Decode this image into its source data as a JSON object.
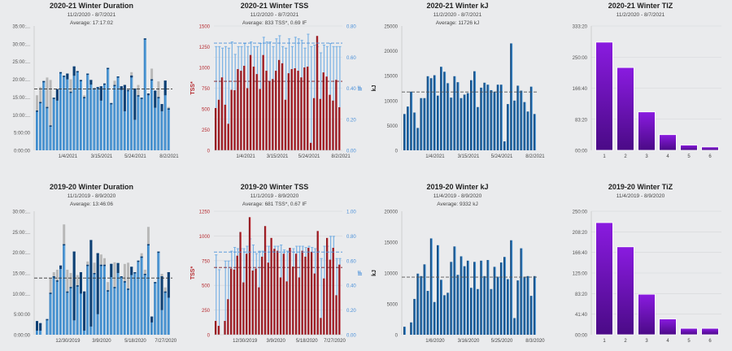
{
  "colors": {
    "background": "#eaebed",
    "duration_main": "#3a86c8",
    "duration_dark": "#0e3f72",
    "duration_light": "#7fc0ef",
    "duration_gray": "#b8b8b8",
    "kj_bar": "#1b5d9a",
    "tss_bar": "#9e1b22",
    "if_bar": "#7bb2e4",
    "tiz_bar": "#6a10b8",
    "tss_axis": "#b5282d",
    "if_axis": "#4a90d9"
  },
  "chart_data": [
    {
      "id": "dur21",
      "type": "bar",
      "title": "2020-21 Winter Duration",
      "subtitle": "11/2/2020 - 8/7/2021",
      "average_label": "Average: 17:17:02",
      "ylabel": "",
      "ylim": [
        0,
        35
      ],
      "yticks": [
        "0:00:00",
        "5:00:00",
        "10:00:...",
        "15:00:...",
        "20:00:...",
        "25:00:...",
        "30:00:...",
        "35:00:..."
      ],
      "xticks": [
        "1/4/2021",
        "3/15/2021",
        "5/24/2021",
        "8/2/2021"
      ],
      "xtick_index": [
        9,
        19,
        29,
        39
      ],
      "average": 17.28,
      "series": [
        {
          "name": "total",
          "values": [
            15.5,
            17.8,
            19.5,
            20.5,
            19.8,
            14.8,
            17.2,
            22,
            21,
            21.6,
            20,
            23.6,
            22.3,
            19.8,
            15.5,
            21.6,
            19.8,
            17.5,
            17.8,
            18,
            18.8,
            23.2,
            13.3,
            19.6,
            20.8,
            18,
            18.4,
            17,
            22,
            17.4,
            18.4,
            14.8,
            31.5,
            16,
            23,
            16.8,
            19.4,
            13,
            19.6,
            12.2
          ]
        },
        {
          "name": "main",
          "values": [
            11.2,
            13.6,
            19.5,
            12.2,
            7,
            14.8,
            17.2,
            22,
            21,
            21.6,
            16.5,
            23.6,
            22.3,
            19.8,
            15,
            21.6,
            19.8,
            17.5,
            17.8,
            18,
            18.8,
            23.2,
            13.3,
            18.4,
            20.8,
            18,
            18.4,
            17,
            21,
            17.4,
            15.5,
            14.8,
            31.5,
            16,
            20,
            16.8,
            15,
            13,
            19.6,
            11.8
          ]
        },
        {
          "name": "dark",
          "values": [
            0,
            0,
            0,
            0,
            0,
            0,
            14,
            0,
            0,
            20,
            0,
            21,
            0,
            0,
            0,
            0,
            18.5,
            0,
            0,
            14,
            0,
            0,
            0,
            0,
            0,
            17,
            11,
            0,
            20.5,
            8.6,
            0,
            0,
            0,
            15.5,
            0,
            12,
            0,
            11,
            15.5,
            0
          ]
        }
      ]
    },
    {
      "id": "tss21",
      "type": "bar",
      "title": "2020-21 Winter TSS",
      "subtitle": "11/2/2020 - 8/7/2021",
      "average_label": "Average: 833 TSS*, 0.69 IF",
      "ylabel": "TSS*",
      "y2label": "IF",
      "ylim": [
        0,
        1500
      ],
      "y2lim": [
        0,
        0.8
      ],
      "yticks": [
        "0",
        "250",
        "500",
        "750",
        "1000",
        "1250",
        "1500"
      ],
      "y2ticks": [
        "0.00",
        "0.20",
        "0.40",
        "0.60",
        "0.80"
      ],
      "xticks": [
        "1/4/2021",
        "3/15/2021",
        "5/24/2021",
        "8/2/2021"
      ],
      "xtick_index": [
        9,
        19,
        29,
        39
      ],
      "average": 833,
      "average2": 0.69,
      "series": [
        {
          "name": "TSS*",
          "values": [
            510,
            610,
            880,
            550,
            320,
            730,
            725,
            980,
            960,
            1020,
            750,
            1150,
            1010,
            920,
            740,
            1150,
            960,
            830,
            860,
            960,
            1090,
            1050,
            610,
            930,
            980,
            990,
            960,
            880,
            1000,
            1010,
            90,
            630,
            1380,
            620,
            940,
            890,
            670,
            600,
            850,
            520
          ]
        },
        {
          "name": "IF",
          "values": [
            0.67,
            0.67,
            0.66,
            0.67,
            0.66,
            0.7,
            0.62,
            0.67,
            0.67,
            0.69,
            0.67,
            0.7,
            0.67,
            0.67,
            0.69,
            0.73,
            0.7,
            0.7,
            0.67,
            0.72,
            0.74,
            0.67,
            0.66,
            0.72,
            0.67,
            0.73,
            0.72,
            0.71,
            0.66,
            0.75,
            0.67,
            0.68,
            0.67,
            0.63,
            0.68,
            0.67,
            0.69,
            0.67,
            0.67,
            0.67
          ]
        }
      ]
    },
    {
      "id": "kj21",
      "type": "bar",
      "title": "2020-21 Winter kJ",
      "subtitle": "11/2/2020 - 8/7/2021",
      "average_label": "Average: 11726 kJ",
      "ylabel": "kJ",
      "ylim": [
        0,
        25000
      ],
      "yticks": [
        "0",
        "5000",
        "10000",
        "15000",
        "20000",
        "25000"
      ],
      "xticks": [
        "1/4/2021",
        "3/15/2021",
        "5/24/2021",
        "8/2/2021"
      ],
      "xtick_index": [
        9,
        19,
        29,
        39
      ],
      "average": 11726,
      "series": [
        {
          "name": "kJ",
          "values": [
            7300,
            8800,
            11800,
            7600,
            4500,
            10500,
            10500,
            14900,
            14500,
            15100,
            11000,
            16800,
            15800,
            13500,
            10600,
            14900,
            13700,
            10500,
            11200,
            11500,
            14100,
            15900,
            8700,
            12600,
            13600,
            13200,
            12100,
            11800,
            13200,
            13200,
            1800,
            9300,
            21500,
            10000,
            13000,
            12000,
            9700,
            7800,
            12800,
            7300
          ]
        }
      ]
    },
    {
      "id": "tiz21",
      "type": "bar",
      "title": "2020-21 Winter TIZ",
      "subtitle": "11/2/2020 - 8/7/2021",
      "ylabel": "",
      "ylim": [
        0,
        333.33
      ],
      "yticks": [
        "00:00",
        "83:20",
        "166:40",
        "250:00",
        "333:20"
      ],
      "categories": [
        "1",
        "2",
        "3",
        "4",
        "5",
        "6"
      ],
      "values": [
        290,
        222,
        103,
        42,
        14,
        9
      ]
    },
    {
      "id": "dur20",
      "type": "bar",
      "title": "2019-20 Winter Duration",
      "subtitle": "11/1/2019 - 8/9/2020",
      "average_label": "Average: 13:46:06",
      "ylabel": "",
      "ylim": [
        0,
        30
      ],
      "yticks": [
        "0:00:00",
        "5:00:00",
        "10:00:...",
        "15:00:...",
        "20:00:...",
        "25:00:...",
        "30:00:..."
      ],
      "xticks": [
        "12/30/2019",
        "3/9/2020",
        "5/18/2020",
        "7/27/2020"
      ],
      "xtick_index": [
        9,
        19,
        29,
        38
      ],
      "average": 13.77,
      "series": [
        {
          "name": "total",
          "values": [
            3.3,
            2.8,
            0,
            3.8,
            13.8,
            15.2,
            15.8,
            16.8,
            26.8,
            15.8,
            15,
            20.2,
            14.5,
            15.2,
            10.5,
            17.8,
            23,
            17.5,
            19.8,
            19.5,
            18.6,
            12.8,
            17.2,
            17.6,
            17.4,
            14.2,
            17.2,
            17.5,
            16.5,
            15.2,
            18,
            19.8,
            15.8,
            26.2,
            4.4,
            12.8,
            20.2,
            14.8,
            11.5,
            15.2
          ]
        },
        {
          "name": "main",
          "values": [
            3.3,
            2.8,
            0,
            3.8,
            10.2,
            14.2,
            13.2,
            16.8,
            22,
            10.5,
            11.6,
            20.2,
            12,
            15.2,
            10.5,
            17,
            23,
            15,
            19.8,
            17,
            17,
            10.8,
            17.2,
            11.6,
            17.4,
            14.2,
            13,
            11.2,
            16.5,
            15.2,
            18,
            19,
            14.8,
            22,
            4.4,
            12.8,
            20.2,
            14.2,
            10.5,
            15.2
          ]
        },
        {
          "name": "dark",
          "values": [
            1,
            1,
            0,
            0,
            0,
            0,
            0,
            16,
            0,
            0,
            0,
            3.5,
            0,
            10,
            1,
            0,
            2,
            0,
            5,
            0,
            0,
            0,
            14,
            0,
            15,
            0,
            0,
            0,
            14.5,
            0,
            0,
            0,
            0,
            0,
            3,
            0,
            0,
            6,
            0,
            9
          ]
        }
      ]
    },
    {
      "id": "tss20",
      "type": "bar",
      "title": "2019-20 Winter TSS",
      "subtitle": "11/1/2019 - 8/9/2020",
      "average_label": "Average: 681 TSS*, 0.67 IF",
      "ylabel": "TSS*",
      "y2label": "IF",
      "ylim": [
        0,
        1250
      ],
      "y2lim": [
        0,
        1.0
      ],
      "yticks": [
        "0",
        "250",
        "500",
        "750",
        "1000",
        "1250"
      ],
      "y2ticks": [
        "0.00",
        "0.20",
        "0.40",
        "0.60",
        "0.80",
        "1.00"
      ],
      "xticks": [
        "12/30/2019",
        "3/9/2020",
        "5/18/2020",
        "7/27/2020"
      ],
      "xtick_index": [
        9,
        19,
        29,
        38
      ],
      "average": 681,
      "average2": 0.67,
      "series": [
        {
          "name": "TSS*",
          "values": [
            140,
            90,
            0,
            140,
            360,
            670,
            660,
            800,
            1040,
            530,
            820,
            1190,
            650,
            670,
            480,
            790,
            1100,
            730,
            980,
            870,
            850,
            580,
            820,
            540,
            880,
            690,
            820,
            580,
            850,
            790,
            880,
            840,
            620,
            1050,
            170,
            570,
            980,
            760,
            880,
            400,
            710
          ]
        },
        {
          "name": "IF",
          "values": [
            0.65,
            0.53,
            0,
            0.6,
            0.6,
            0.68,
            0.71,
            0.7,
            0.7,
            0.7,
            0.72,
            0.78,
            0.73,
            0.66,
            0.68,
            0.68,
            0.72,
            0.72,
            0.68,
            0.72,
            0.72,
            0.73,
            0.69,
            0.68,
            0.68,
            0.7,
            0.72,
            0.72,
            0.72,
            0.71,
            0.72,
            0.71,
            0.7,
            0.68,
            0.62,
            0.72,
            0.72,
            0.8,
            0.8,
            0.62,
            0.62
          ]
        }
      ]
    },
    {
      "id": "kj20",
      "type": "bar",
      "title": "2019-20 Winter kJ",
      "subtitle": "11/4/2019 - 8/9/2020",
      "average_label": "Average: 9332 kJ",
      "ylabel": "kJ",
      "ylim": [
        0,
        20000
      ],
      "yticks": [
        "0",
        "5000",
        "10000",
        "15000",
        "20000"
      ],
      "xticks": [
        "1/6/2020",
        "3/16/2020",
        "5/25/2020",
        "8/3/2020"
      ],
      "xtick_index": [
        9,
        19,
        29,
        39
      ],
      "average": 9332,
      "series": [
        {
          "name": "kJ",
          "values": [
            1300,
            0,
            2000,
            5800,
            9900,
            9500,
            11400,
            7100,
            15600,
            5300,
            14500,
            8900,
            6400,
            6800,
            11800,
            14300,
            9700,
            12700,
            11100,
            12000,
            7600,
            11800,
            7400,
            12000,
            9500,
            12100,
            7400,
            11000,
            9400,
            11700,
            12600,
            9000,
            15300,
            2700,
            8800,
            14000,
            9400,
            9500,
            6300,
            9500
          ]
        }
      ]
    },
    {
      "id": "tiz20",
      "type": "bar",
      "title": "2019-20 Winter TiZ",
      "subtitle": "11/4/2019 - 8/9/2020",
      "ylabel": "",
      "ylim": [
        0,
        250
      ],
      "yticks": [
        "00:00",
        "41:40",
        "83:20",
        "125:00",
        "166:40",
        "208:20",
        "250:00"
      ],
      "categories": [
        "1",
        "2",
        "3",
        "4",
        "5",
        "6"
      ],
      "values": [
        227,
        178,
        82,
        32,
        13,
        13
      ]
    }
  ]
}
